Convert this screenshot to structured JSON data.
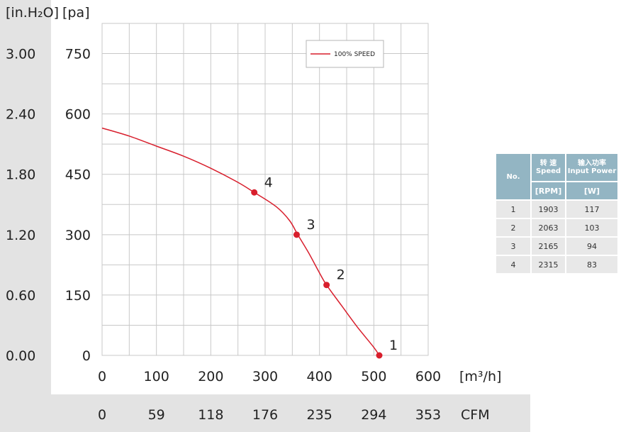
{
  "chart_data": {
    "type": "line",
    "axes": {
      "y_left_unit": "[in.H₂O]",
      "y_right_unit": "[pa]",
      "x_primary_unit": "[m³/h]",
      "x_secondary_unit": "CFM",
      "y_ticks_pa": [
        0,
        150,
        300,
        450,
        600,
        750
      ],
      "y_ticks_pa_labels": [
        "0",
        "150",
        "300",
        "450",
        "600",
        "750"
      ],
      "y_ticks_inh2o_labels": [
        "0.00",
        "0.60",
        "1.20",
        "1.80",
        "2.40",
        "3.00"
      ],
      "x_ticks_m3h": [
        0,
        100,
        200,
        300,
        400,
        500,
        600
      ],
      "x_ticks_m3h_labels": [
        "0",
        "100",
        "200",
        "300",
        "400",
        "500",
        "600"
      ],
      "x_ticks_cfm_labels": [
        "0",
        "59",
        "118",
        "176",
        "235",
        "294",
        "353"
      ],
      "xlim": [
        0,
        600
      ],
      "ylim": [
        0,
        825
      ],
      "grid": true
    },
    "series": [
      {
        "name": "100% SPEED",
        "color": "#d81e2c",
        "x": [
          0,
          50,
          100,
          150,
          200,
          250,
          280,
          320,
          345,
          360,
          380,
          400,
          413,
          440,
          470,
          500,
          510
        ],
        "y": [
          565,
          545,
          520,
          495,
          465,
          430,
          405,
          370,
          335,
          300,
          255,
          205,
          175,
          125,
          70,
          20,
          0
        ]
      }
    ],
    "points": [
      {
        "label": "1",
        "x": 510,
        "y": 0
      },
      {
        "label": "2",
        "x": 413,
        "y": 175
      },
      {
        "label": "3",
        "x": 358,
        "y": 300
      },
      {
        "label": "4",
        "x": 280,
        "y": 405
      }
    ],
    "legend": {
      "position": "top-right",
      "entries": [
        "100% SPEED"
      ]
    }
  },
  "table": {
    "header_no": "No.",
    "header_speed_cn": "转 速",
    "header_speed_en": "Speed",
    "header_power_cn": "输入功率",
    "header_power_en": "Input Power",
    "unit_speed": "[RPM]",
    "unit_power": "[W]",
    "rows": [
      {
        "no": "1",
        "speed": "1903",
        "power": "117"
      },
      {
        "no": "2",
        "speed": "2063",
        "power": "103"
      },
      {
        "no": "3",
        "speed": "2165",
        "power": "94"
      },
      {
        "no": "4",
        "speed": "2315",
        "power": "83"
      }
    ]
  }
}
